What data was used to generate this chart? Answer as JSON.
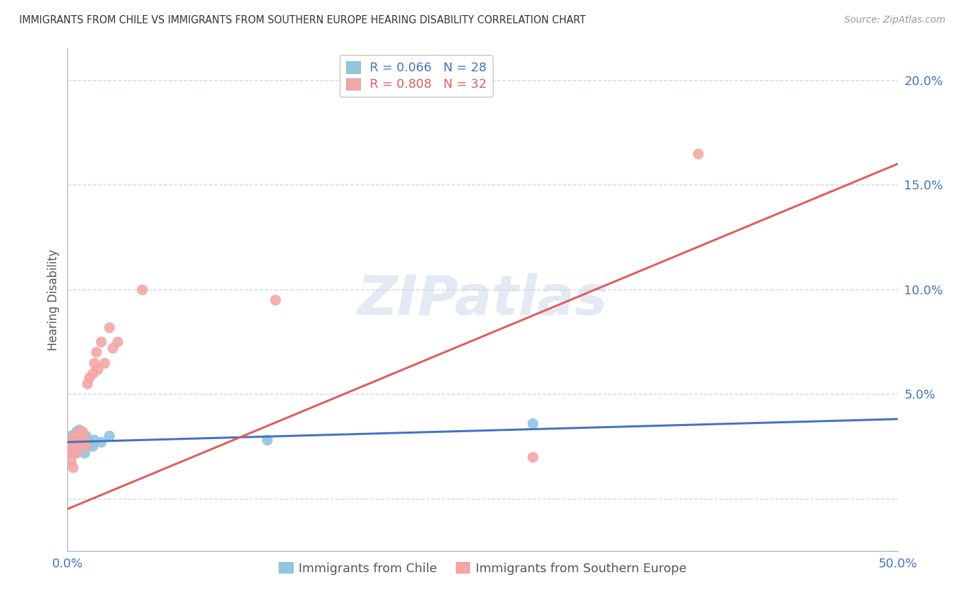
{
  "title": "IMMIGRANTS FROM CHILE VS IMMIGRANTS FROM SOUTHERN EUROPE HEARING DISABILITY CORRELATION CHART",
  "source": "Source: ZipAtlas.com",
  "ylabel": "Hearing Disability",
  "xlim": [
    0.0,
    0.5
  ],
  "ylim": [
    -0.025,
    0.215
  ],
  "yticks": [
    0.0,
    0.05,
    0.1,
    0.15,
    0.2
  ],
  "ytick_labels": [
    "",
    "5.0%",
    "10.0%",
    "15.0%",
    "20.0%"
  ],
  "xticks": [
    0.0,
    0.125,
    0.25,
    0.375,
    0.5
  ],
  "xtick_labels": [
    "0.0%",
    "",
    "",
    "",
    "50.0%"
  ],
  "legend_chile_R": "R = 0.066",
  "legend_chile_N": "N = 28",
  "legend_se_R": "R = 0.808",
  "legend_se_N": "N = 32",
  "color_chile": "#92c5de",
  "color_se": "#f4a6a6",
  "color_chile_line": "#4472c4",
  "color_se_line": "#e05c5c",
  "background_color": "#ffffff",
  "grid_color": "#c8d8e8",
  "chile_x": [
    0.001,
    0.002,
    0.002,
    0.003,
    0.003,
    0.003,
    0.004,
    0.004,
    0.005,
    0.005,
    0.005,
    0.006,
    0.006,
    0.007,
    0.007,
    0.008,
    0.009,
    0.01,
    0.01,
    0.011,
    0.012,
    0.013,
    0.015,
    0.016,
    0.02,
    0.025,
    0.12,
    0.28
  ],
  "chile_y": [
    0.028,
    0.03,
    0.025,
    0.027,
    0.025,
    0.03,
    0.022,
    0.028,
    0.026,
    0.028,
    0.032,
    0.025,
    0.027,
    0.033,
    0.028,
    0.03,
    0.025,
    0.027,
    0.022,
    0.03,
    0.028,
    0.025,
    0.025,
    0.028,
    0.027,
    0.03,
    0.028,
    0.036
  ],
  "se_x": [
    0.001,
    0.002,
    0.002,
    0.003,
    0.003,
    0.004,
    0.004,
    0.005,
    0.005,
    0.006,
    0.006,
    0.007,
    0.007,
    0.008,
    0.009,
    0.01,
    0.011,
    0.012,
    0.013,
    0.015,
    0.016,
    0.017,
    0.018,
    0.02,
    0.022,
    0.025,
    0.027,
    0.03,
    0.045,
    0.125,
    0.28,
    0.38
  ],
  "se_y": [
    0.025,
    0.022,
    0.018,
    0.028,
    0.015,
    0.025,
    0.03,
    0.027,
    0.022,
    0.03,
    0.025,
    0.032,
    0.028,
    0.03,
    0.032,
    0.028,
    0.025,
    0.055,
    0.058,
    0.06,
    0.065,
    0.07,
    0.062,
    0.075,
    0.065,
    0.082,
    0.072,
    0.075,
    0.1,
    0.095,
    0.02,
    0.165
  ]
}
